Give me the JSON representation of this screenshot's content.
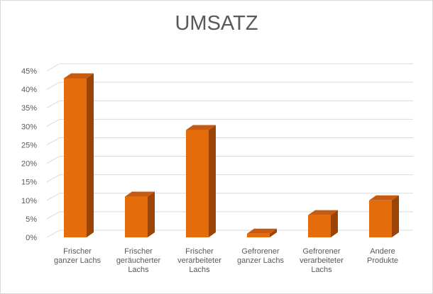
{
  "chart_data": {
    "type": "bar",
    "title": "UMSATZ",
    "xlabel": "",
    "ylabel": "",
    "ylim": [
      0,
      45
    ],
    "y_ticks": [
      "0%",
      "5%",
      "10%",
      "15%",
      "20%",
      "25%",
      "30%",
      "35%",
      "40%",
      "45%"
    ],
    "grid": true,
    "categories": [
      [
        "Frischer",
        "ganzer Lachs"
      ],
      [
        "Frischer",
        "geräucherter",
        "Lachs"
      ],
      [
        "Frischer",
        "verarbeiteter",
        "Lachs"
      ],
      [
        "Gefrorener",
        "ganzer Lachs"
      ],
      [
        "Gefrorener",
        "verarbeiteter",
        "Lachs"
      ],
      [
        "Andere",
        "Produkte"
      ]
    ],
    "values": [
      43,
      11,
      29,
      1,
      6,
      10
    ],
    "unit": "%",
    "colors": {
      "bar_front": "#E46C0A",
      "bar_top": "#C55A11",
      "bar_side": "#9C4306",
      "grid": "#d9d9d9",
      "text": "#595959"
    }
  }
}
